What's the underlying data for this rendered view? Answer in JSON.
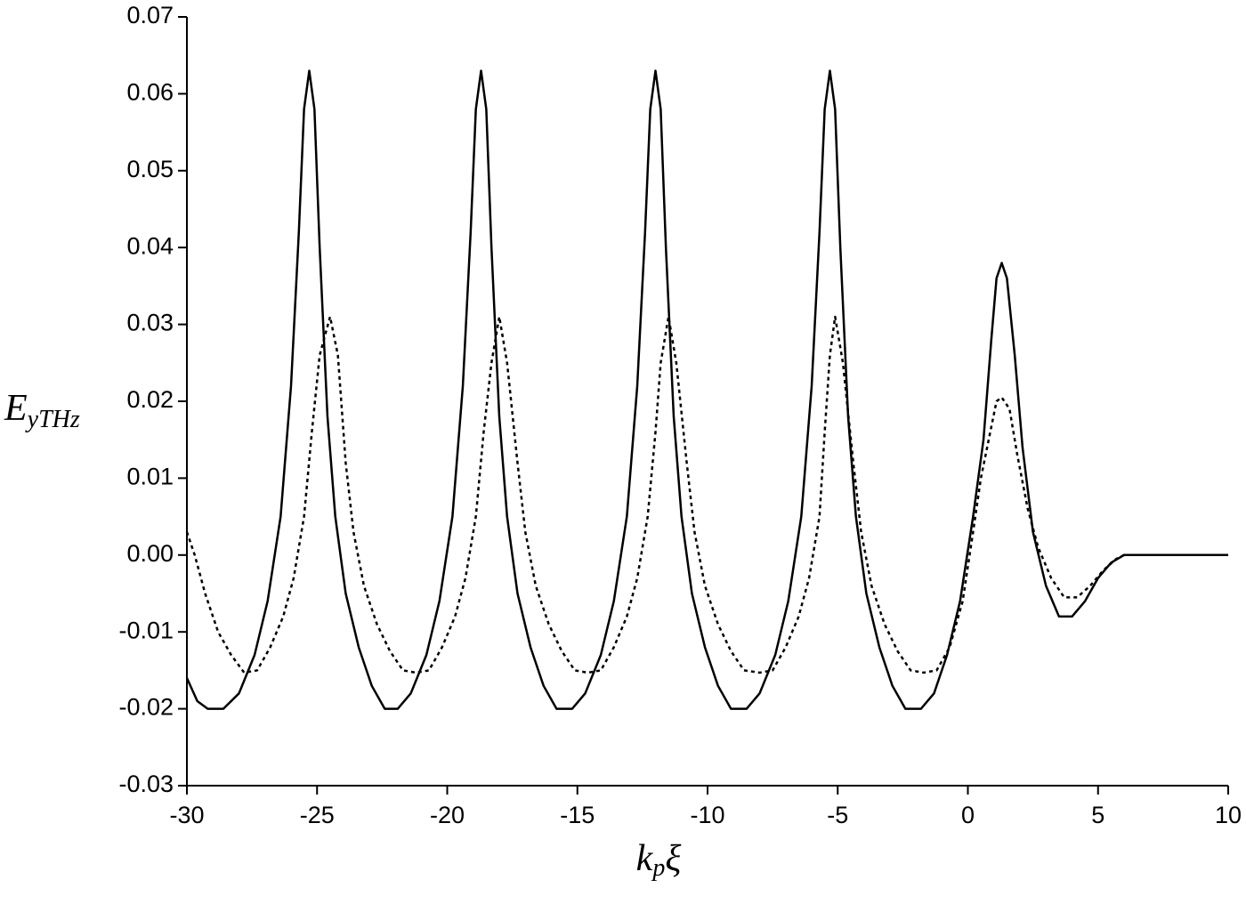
{
  "chart_data": {
    "type": "line",
    "xlabel": [
      "k",
      "p",
      "ξ"
    ],
    "ylabel": [
      "E",
      "yTHz"
    ],
    "xlim": [
      -30,
      10
    ],
    "xticks": [
      -30,
      -25,
      -20,
      -15,
      -10,
      -5,
      0,
      5,
      10
    ],
    "ylim": [
      -0.03,
      0.07
    ],
    "yticks": [
      -0.03,
      -0.02,
      -0.01,
      {
        "value": 0,
        "label": "0.00"
      },
      0.01,
      0.02,
      0.03,
      0.04,
      0.05,
      0.06,
      0.07
    ],
    "grid": false,
    "series": [
      {
        "color": "#000000",
        "line_style": "solid",
        "x": [
          -30,
          -29.6,
          -29.2,
          -28.6,
          -28.0,
          -27.4,
          -26.9,
          -26.4,
          -26.0,
          -25.7,
          -25.5,
          -25.3,
          -25.1,
          -24.9,
          -24.6,
          -24.3,
          -23.9,
          -23.4,
          -22.9,
          -22.4,
          -21.9,
          -21.4,
          -20.8,
          -20.3,
          -19.8,
          -19.4,
          -19.1,
          -18.9,
          -18.7,
          -18.5,
          -18.3,
          -18.0,
          -17.7,
          -17.3,
          -16.8,
          -16.3,
          -15.8,
          -15.2,
          -14.7,
          -14.1,
          -13.6,
          -13.1,
          -12.7,
          -12.4,
          -12.2,
          -12.0,
          -11.8,
          -11.6,
          -11.3,
          -11.0,
          -10.6,
          -10.1,
          -9.6,
          -9.1,
          -8.5,
          -8.0,
          -7.4,
          -6.9,
          -6.4,
          -6.0,
          -5.7,
          -5.5,
          -5.3,
          -5.1,
          -4.9,
          -4.6,
          -4.3,
          -3.9,
          -3.4,
          -2.9,
          -2.4,
          -1.8,
          -1.3,
          -0.8,
          -0.3,
          0.2,
          0.6,
          0.9,
          1.1,
          1.3,
          1.5,
          1.8,
          2.1,
          2.5,
          3.0,
          3.5,
          4.0,
          4.5,
          5.0,
          5.5,
          6.0,
          10
        ],
        "values": [
          -0.016,
          -0.019,
          -0.02,
          -0.02,
          -0.018,
          -0.013,
          -0.006,
          0.005,
          0.022,
          0.042,
          0.058,
          0.063,
          0.058,
          0.04,
          0.018,
          0.005,
          -0.005,
          -0.012,
          -0.017,
          -0.02,
          -0.02,
          -0.018,
          -0.013,
          -0.006,
          0.005,
          0.022,
          0.042,
          0.058,
          0.063,
          0.058,
          0.04,
          0.018,
          0.005,
          -0.005,
          -0.012,
          -0.017,
          -0.02,
          -0.02,
          -0.018,
          -0.013,
          -0.006,
          0.005,
          0.022,
          0.042,
          0.058,
          0.063,
          0.058,
          0.04,
          0.018,
          0.005,
          -0.005,
          -0.012,
          -0.017,
          -0.02,
          -0.02,
          -0.018,
          -0.013,
          -0.006,
          0.005,
          0.022,
          0.042,
          0.058,
          0.063,
          0.058,
          0.04,
          0.018,
          0.005,
          -0.005,
          -0.012,
          -0.017,
          -0.02,
          -0.02,
          -0.018,
          -0.013,
          -0.006,
          0.005,
          0.015,
          0.028,
          0.036,
          0.038,
          0.036,
          0.026,
          0.014,
          0.003,
          -0.004,
          -0.008,
          -0.008,
          -0.006,
          -0.003,
          -0.001,
          0,
          0
        ]
      },
      {
        "color": "#000000",
        "line_style": "dotted",
        "x": [
          -30,
          -29.7,
          -29.3,
          -28.8,
          -28.3,
          -27.8,
          -27.3,
          -26.8,
          -26.3,
          -25.9,
          -25.5,
          -25.2,
          -24.9,
          -24.5,
          -24.2,
          -23.9,
          -23.6,
          -23.2,
          -22.7,
          -22.2,
          -21.7,
          -21.2,
          -20.7,
          -20.2,
          -19.7,
          -19.3,
          -18.9,
          -18.6,
          -18.3,
          -18.0,
          -17.7,
          -17.3,
          -17.0,
          -16.6,
          -16.1,
          -15.6,
          -15.1,
          -14.6,
          -14.1,
          -13.6,
          -13.1,
          -12.7,
          -12.3,
          -12.0,
          -11.8,
          -11.5,
          -11.2,
          -10.8,
          -10.5,
          -10.1,
          -9.6,
          -9.1,
          -8.6,
          -8.0,
          -7.5,
          -7.0,
          -6.5,
          -6.1,
          -5.7,
          -5.5,
          -5.3,
          -5.1,
          -4.8,
          -4.4,
          -4.1,
          -3.7,
          -3.2,
          -2.7,
          -2.2,
          -1.7,
          -1.2,
          -0.7,
          -0.2,
          0.2,
          0.5,
          0.8,
          1.1,
          1.3,
          1.6,
          1.9,
          2.3,
          2.7,
          3.2,
          3.7,
          4.2,
          4.7,
          5.2,
          5.7,
          6.0,
          10
        ],
        "values": [
          0.003,
          0.0,
          -0.005,
          -0.01,
          -0.013,
          -0.0153,
          -0.015,
          -0.012,
          -0.008,
          -0.003,
          0.005,
          0.016,
          0.026,
          0.031,
          0.026,
          0.012,
          0.003,
          -0.004,
          -0.009,
          -0.0125,
          -0.015,
          -0.0153,
          -0.015,
          -0.012,
          -0.008,
          -0.003,
          0.005,
          0.016,
          0.025,
          0.031,
          0.025,
          0.012,
          0.003,
          -0.004,
          -0.009,
          -0.0125,
          -0.015,
          -0.0153,
          -0.015,
          -0.012,
          -0.008,
          -0.003,
          0.005,
          0.016,
          0.025,
          0.031,
          0.025,
          0.012,
          0.003,
          -0.004,
          -0.009,
          -0.0125,
          -0.015,
          -0.0153,
          -0.015,
          -0.012,
          -0.008,
          -0.003,
          0.005,
          0.016,
          0.026,
          0.031,
          0.025,
          0.012,
          0.003,
          -0.004,
          -0.009,
          -0.0125,
          -0.015,
          -0.0153,
          -0.015,
          -0.012,
          -0.006,
          0.003,
          0.01,
          0.015,
          0.02,
          0.0205,
          0.019,
          0.013,
          0.006,
          0.001,
          -0.003,
          -0.0055,
          -0.0055,
          -0.004,
          -0.002,
          -0.0005,
          0,
          0
        ]
      }
    ]
  }
}
